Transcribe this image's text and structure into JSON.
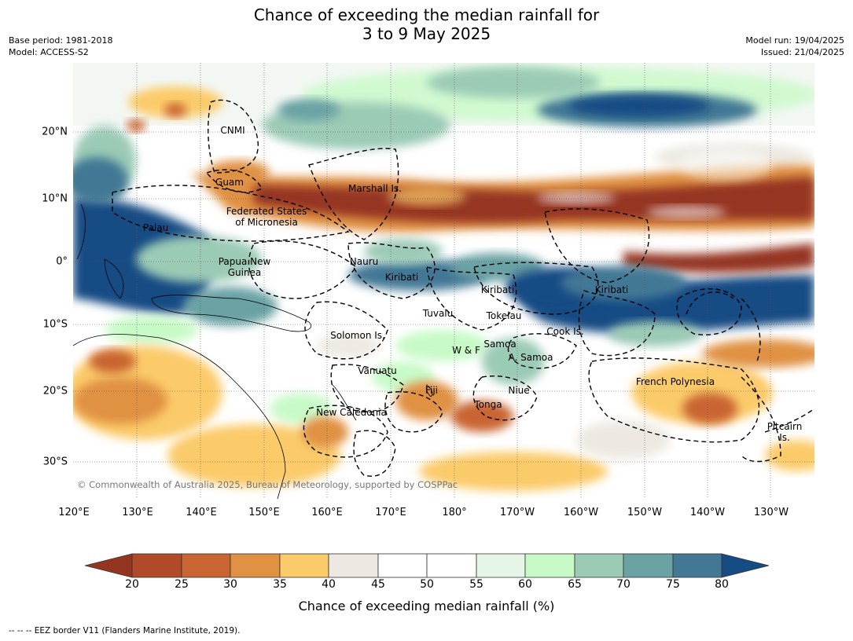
{
  "header": {
    "title_line1": "Chance of exceeding the median rainfall for",
    "title_line2": "3 to 9 May 2025",
    "base_period": "Base period: 1981-2018",
    "model": "Model: ACCESS-S2",
    "model_run": "Model run: 19/04/2025",
    "issued": "Issued: 21/04/2025"
  },
  "map": {
    "lon_labels": [
      "120°E",
      "130°E",
      "140°E",
      "150°E",
      "160°E",
      "170°E",
      "180°",
      "170°W",
      "160°W",
      "150°W",
      "140°W",
      "130°W"
    ],
    "lat_labels": [
      "20°N",
      "10°N",
      "0°",
      "10°S",
      "20°S",
      "30°S"
    ],
    "places": {
      "cnmi": "CNMI",
      "guam": "Guam",
      "marshall": "Marshall Is.",
      "fsm_1": "Federated States",
      "fsm_2": "of Micronesia",
      "palau": "Palau",
      "png_1": "Papua New",
      "png_2": "Guinea",
      "nauru": "Nauru",
      "kiribati_w": "Kiribati",
      "kiribati_c": "Kiribati",
      "kiribati_e": "Kiribati",
      "tuvalu": "Tuvalu",
      "tokelau": "Tokelau",
      "cook": "Cook Is.",
      "solomon": "Solomon Is.",
      "samoa": "Samoa",
      "wf": "W & F",
      "asamoa": "A. Samoa",
      "vanuatu": "Vanuatu",
      "fiji": "Fiji",
      "niue": "Niue",
      "tonga": "Tonga",
      "newcal": "New Caledonia",
      "frenchpoly": "French Polynesia",
      "pitcairn_1": "Pitcairn",
      "pitcairn_2": "Is."
    },
    "copyright": "© Commonwealth of Australia 2025, Bureau of Meteorology, supported by COSPPac"
  },
  "colorbar": {
    "ticks": [
      "20",
      "25",
      "30",
      "35",
      "40",
      "45",
      "50",
      "55",
      "60",
      "65",
      "70",
      "75",
      "80"
    ],
    "colors": {
      "below_20": "#953420",
      "20_25": "#b04a28",
      "25_30": "#c96532",
      "30_35": "#e09143",
      "35_40": "#fbcb6a",
      "40_45": "#ede9e2",
      "45_50": "#ffffff",
      "50_55": "#ffffff",
      "55_60": "#e6f6e6",
      "60_65": "#c8fac8",
      "65_70": "#9bcab5",
      "70_75": "#6ba2a4",
      "75_80": "#427895",
      "above_80": "#154c84"
    },
    "title": "Chance of exceeding median rainfall (%)"
  },
  "footnote": "--  --  -- EEZ border V11 (Flanders Marine Institute, 2019)."
}
